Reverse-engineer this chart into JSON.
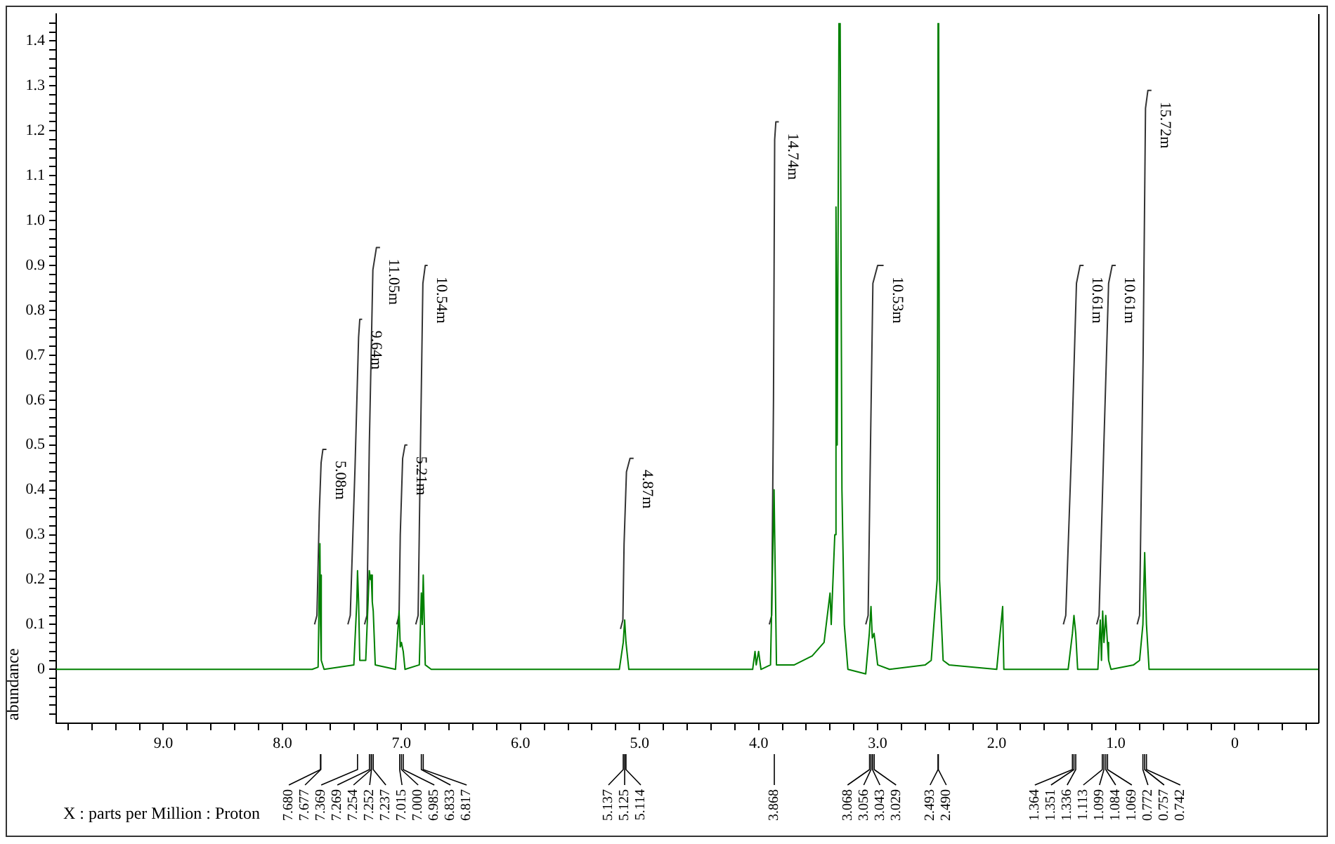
{
  "chart_data": {
    "type": "line",
    "xlabel": "X : parts per Million : Proton",
    "ylabel": "abundance",
    "grid": false,
    "legend": false,
    "xlim": [
      9.9,
      -0.7
    ],
    "ylim": [
      -0.12,
      1.46
    ],
    "xticks": [
      {
        "value": 9.8,
        "label": null
      },
      {
        "value": 9.6,
        "label": null
      },
      {
        "value": 9.4,
        "label": null
      },
      {
        "value": 9.2,
        "label": null
      },
      {
        "value": 9,
        "label": "9.0"
      },
      {
        "value": 8.8,
        "label": null
      },
      {
        "value": 8.6,
        "label": null
      },
      {
        "value": 8.4,
        "label": null
      },
      {
        "value": 8.2,
        "label": null
      },
      {
        "value": 8,
        "label": "8.0"
      },
      {
        "value": 7.8,
        "label": null
      },
      {
        "value": 7.6,
        "label": null
      },
      {
        "value": 7.4,
        "label": null
      },
      {
        "value": 7.2,
        "label": null
      },
      {
        "value": 7,
        "label": "7.0"
      },
      {
        "value": 6.8,
        "label": null
      },
      {
        "value": 6.6,
        "label": null
      },
      {
        "value": 6.4,
        "label": null
      },
      {
        "value": 6.2,
        "label": null
      },
      {
        "value": 6,
        "label": "6.0"
      },
      {
        "value": 5.8,
        "label": null
      },
      {
        "value": 5.6,
        "label": null
      },
      {
        "value": 5.4,
        "label": null
      },
      {
        "value": 5.2,
        "label": null
      },
      {
        "value": 5,
        "label": "5.0"
      },
      {
        "value": 4.8,
        "label": null
      },
      {
        "value": 4.6,
        "label": null
      },
      {
        "value": 4.4,
        "label": null
      },
      {
        "value": 4.2,
        "label": null
      },
      {
        "value": 4,
        "label": "4.0"
      },
      {
        "value": 3.8,
        "label": null
      },
      {
        "value": 3.6,
        "label": null
      },
      {
        "value": 3.4,
        "label": null
      },
      {
        "value": 3.2,
        "label": null
      },
      {
        "value": 3,
        "label": "3.0"
      },
      {
        "value": 2.8,
        "label": null
      },
      {
        "value": 2.6,
        "label": null
      },
      {
        "value": 2.4,
        "label": null
      },
      {
        "value": 2.2,
        "label": null
      },
      {
        "value": 2,
        "label": "2.0"
      },
      {
        "value": 1.8,
        "label": null
      },
      {
        "value": 1.6,
        "label": null
      },
      {
        "value": 1.4,
        "label": null
      },
      {
        "value": 1.2,
        "label": null
      },
      {
        "value": 1,
        "label": "1.0"
      },
      {
        "value": 0.8,
        "label": null
      },
      {
        "value": 0.6,
        "label": null
      },
      {
        "value": 0.4,
        "label": null
      },
      {
        "value": 0.2,
        "label": null
      },
      0,
      {
        "value": -0.2,
        "label": null
      },
      {
        "value": -0.4,
        "label": null
      },
      {
        "value": -0.6,
        "label": null
      }
    ],
    "yticks": [
      {
        "value": -0.1,
        "label": null
      },
      {
        "value": -0.08,
        "label": null
      },
      {
        "value": -0.06,
        "label": null
      },
      {
        "value": -0.04,
        "label": null
      },
      {
        "value": -0.02,
        "label": null
      },
      0,
      {
        "value": 0.02,
        "label": null
      },
      {
        "value": 0.04,
        "label": null
      },
      {
        "value": 0.06,
        "label": null
      },
      {
        "value": 0.08,
        "label": null
      },
      0.1,
      {
        "value": 0.12,
        "label": null
      },
      {
        "value": 0.14,
        "label": null
      },
      {
        "value": 0.16,
        "label": null
      },
      {
        "value": 0.18,
        "label": null
      },
      0.2,
      {
        "value": 0.22,
        "label": null
      },
      {
        "value": 0.24,
        "label": null
      },
      {
        "value": 0.26,
        "label": null
      },
      {
        "value": 0.28,
        "label": null
      },
      0.3,
      {
        "value": 0.32,
        "label": null
      },
      {
        "value": 0.34,
        "label": null
      },
      {
        "value": 0.36,
        "label": null
      },
      {
        "value": 0.38,
        "label": null
      },
      0.4,
      {
        "value": 0.42,
        "label": null
      },
      {
        "value": 0.44,
        "label": null
      },
      {
        "value": 0.46,
        "label": null
      },
      {
        "value": 0.48,
        "label": null
      },
      0.5,
      {
        "value": 0.52,
        "label": null
      },
      {
        "value": 0.54,
        "label": null
      },
      {
        "value": 0.56,
        "label": null
      },
      {
        "value": 0.58,
        "label": null
      },
      0.6,
      {
        "value": 0.62,
        "label": null
      },
      {
        "value": 0.64,
        "label": null
      },
      {
        "value": 0.66,
        "label": null
      },
      {
        "value": 0.68,
        "label": null
      },
      0.7,
      {
        "value": 0.72,
        "label": null
      },
      {
        "value": 0.74,
        "label": null
      },
      {
        "value": 0.76,
        "label": null
      },
      {
        "value": 0.78,
        "label": null
      },
      0.8,
      {
        "value": 0.82,
        "label": null
      },
      {
        "value": 0.84,
        "label": null
      },
      {
        "value": 0.86,
        "label": null
      },
      {
        "value": 0.88,
        "label": null
      },
      0.9,
      {
        "value": 0.92,
        "label": null
      },
      {
        "value": 0.94,
        "label": null
      },
      {
        "value": 0.96,
        "label": null
      },
      {
        "value": 0.98,
        "label": null
      },
      {
        "value": 1,
        "label": "1.0"
      },
      {
        "value": 1.02,
        "label": null
      },
      {
        "value": 1.04,
        "label": null
      },
      {
        "value": 1.06,
        "label": null
      },
      {
        "value": 1.08,
        "label": null
      },
      1.1,
      {
        "value": 1.12,
        "label": null
      },
      {
        "value": 1.14,
        "label": null
      },
      {
        "value": 1.16,
        "label": null
      },
      {
        "value": 1.18,
        "label": null
      },
      1.2,
      {
        "value": 1.22,
        "label": null
      },
      {
        "value": 1.24,
        "label": null
      },
      {
        "value": 1.26,
        "label": null
      },
      {
        "value": 1.28,
        "label": null
      },
      1.3,
      {
        "value": 1.32,
        "label": null
      },
      {
        "value": 1.34,
        "label": null
      },
      {
        "value": 1.36,
        "label": null
      },
      {
        "value": 1.38,
        "label": null
      },
      1.4,
      {
        "value": 1.42,
        "label": null
      },
      {
        "value": 1.44,
        "label": null
      }
    ],
    "series": [
      {
        "color": "#008000",
        "x": [
          9.9,
          7.75,
          7.7,
          7.685,
          7.68,
          7.677,
          7.67,
          7.65,
          7.4,
          7.375,
          7.369,
          7.36,
          7.35,
          7.3,
          7.27,
          7.26,
          7.254,
          7.245,
          7.237,
          7.22,
          7.05,
          7.02,
          7.01,
          7,
          6.985,
          6.97,
          6.85,
          6.833,
          6.825,
          6.817,
          6.8,
          6.75,
          5.17,
          5.137,
          5.125,
          5.114,
          5.09,
          4.05,
          4.03,
          4.02,
          4,
          3.98,
          3.9,
          3.87,
          3.85,
          3.7,
          3.55,
          3.45,
          3.4,
          3.39,
          3.36,
          3.35,
          3.34,
          3.325,
          3.32,
          3.315,
          3.3,
          3.28,
          3.25,
          3.1,
          3.07,
          3.056,
          3.045,
          3.03,
          3,
          2.9,
          2.6,
          2.55,
          2.5,
          2.4925,
          2.49,
          2.4875,
          2.48,
          2.45,
          2.4,
          2,
          1.95,
          1.94,
          1.4,
          1.364,
          1.351,
          1.336,
          1.32,
          1.15,
          1.13,
          1.12,
          1.11,
          1.099,
          1.084,
          1.07,
          1.06,
          1.04,
          0.85,
          0.8,
          0.772,
          0.757,
          0.742,
          0.72,
          -0.7
        ],
        "values": [
          0,
          0,
          0.005,
          0.28,
          0.1,
          0.21,
          0.02,
          0,
          0.01,
          0.15,
          0.22,
          0.15,
          0.02,
          0.02,
          0.22,
          0.2,
          0.21,
          0.15,
          0.13,
          0.01,
          0,
          0.13,
          0.05,
          0.06,
          0.04,
          0,
          0.01,
          0.17,
          0.1,
          0.21,
          0.01,
          0,
          0,
          0.06,
          0.11,
          0.06,
          0,
          0,
          0.04,
          0.01,
          0.04,
          0,
          0.01,
          0.4,
          0.01,
          0.01,
          0.03,
          0.06,
          0.17,
          0.1,
          0.3,
          1.03,
          0.5,
          1.44,
          null,
          1.44,
          0.4,
          0.1,
          0,
          -0.01,
          0.08,
          0.14,
          0.07,
          0.08,
          0.01,
          0,
          0.01,
          0.02,
          0.2,
          1.44,
          null,
          1.44,
          0.2,
          0.02,
          0.01,
          0,
          0.14,
          0,
          0,
          0.08,
          0.12,
          0.08,
          0,
          0,
          0.11,
          0.02,
          0.13,
          0.06,
          0.12,
          0.06,
          0.02,
          0,
          0.01,
          0.02,
          0.1,
          0.26,
          0.1,
          0,
          0
        ]
      },
      {
        "color": "#333333",
        "x": [
          7.73,
          7.71,
          7.69,
          7.675,
          7.66,
          7.63
        ],
        "values": [
          0.1,
          0.12,
          0.35,
          0.46,
          0.49,
          0.49
        ]
      },
      {
        "color": "#333333",
        "x": [
          7.45,
          7.43,
          7.39,
          7.36,
          7.35,
          7.33
        ],
        "values": [
          0.1,
          0.12,
          0.45,
          0.74,
          0.78,
          0.78
        ]
      },
      {
        "color": "#333333",
        "x": [
          7.31,
          7.29,
          7.27,
          7.24,
          7.21,
          7.18
        ],
        "values": [
          0.1,
          0.12,
          0.5,
          0.89,
          0.94,
          0.94
        ]
      },
      {
        "color": "#333333",
        "x": [
          7.04,
          7.02,
          7.01,
          6.99,
          6.97,
          6.95
        ],
        "values": [
          0.1,
          0.12,
          0.3,
          0.47,
          0.5,
          0.5
        ]
      },
      {
        "color": "#333333",
        "x": [
          6.88,
          6.86,
          6.84,
          6.82,
          6.8,
          6.78
        ],
        "values": [
          0.1,
          0.12,
          0.5,
          0.86,
          0.9,
          0.9
        ]
      },
      {
        "color": "#333333",
        "x": [
          5.16,
          5.14,
          5.13,
          5.11,
          5.08,
          5.05
        ],
        "values": [
          0.09,
          0.11,
          0.28,
          0.44,
          0.47,
          0.47
        ]
      },
      {
        "color": "#333333",
        "x": [
          3.91,
          3.89,
          3.875,
          3.865,
          3.855,
          3.83
        ],
        "values": [
          0.1,
          0.12,
          0.6,
          1.18,
          1.22,
          1.22
        ]
      },
      {
        "color": "#333333",
        "x": [
          3.1,
          3.08,
          3.06,
          3.04,
          3,
          2.95
        ],
        "values": [
          0.1,
          0.12,
          0.5,
          0.86,
          0.9,
          0.9
        ]
      },
      {
        "color": "#333333",
        "x": [
          1.44,
          1.42,
          1.37,
          1.33,
          1.3,
          1.27
        ],
        "values": [
          0.1,
          0.12,
          0.5,
          0.86,
          0.9,
          0.9
        ]
      },
      {
        "color": "#333333",
        "x": [
          1.16,
          1.14,
          1.1,
          1.06,
          1.03,
          1
        ],
        "values": [
          0.1,
          0.12,
          0.5,
          0.86,
          0.9,
          0.9
        ]
      },
      {
        "color": "#333333",
        "x": [
          0.82,
          0.8,
          0.77,
          0.75,
          0.73,
          0.7
        ],
        "values": [
          0.1,
          0.12,
          0.7,
          1.25,
          1.29,
          1.29
        ]
      }
    ],
    "annotations": [
      {
        "text": "5.08m",
        "x": 7.63,
        "y": 0.49
      },
      {
        "text": "9.64m",
        "x": 7.33,
        "y": 0.78
      },
      {
        "text": "11.05m",
        "x": 7.18,
        "y": 0.94
      },
      {
        "text": "5.21m",
        "x": 6.95,
        "y": 0.5
      },
      {
        "text": "10.54m",
        "x": 6.78,
        "y": 0.9
      },
      {
        "text": "4.87m",
        "x": 5.05,
        "y": 0.47
      },
      {
        "text": "14.74m",
        "x": 3.83,
        "y": 1.22
      },
      {
        "text": "10.53m",
        "x": 2.95,
        "y": 0.9
      },
      {
        "text": "10.61m",
        "x": 1.27,
        "y": 0.9
      },
      {
        "text": "10.61m",
        "x": 1,
        "y": 0.9
      },
      {
        "text": "15.72m",
        "x": 0.7,
        "y": 1.29
      },
      {
        "text": "7.680",
        "x": 7.68
      },
      {
        "text": "7.677",
        "x": 7.677
      },
      {
        "text": "7.369",
        "x": 7.369
      },
      {
        "text": "7.269",
        "x": 7.269
      },
      {
        "text": "7.254",
        "x": 7.254
      },
      {
        "text": "7.252",
        "x": 7.252
      },
      {
        "text": "7.237",
        "x": 7.237
      },
      {
        "text": "7.015",
        "x": 7.015
      },
      {
        "text": "7.000",
        "x": 7
      },
      {
        "text": "6.985",
        "x": 6.985
      },
      {
        "text": "6.833",
        "x": 6.833
      },
      {
        "text": "6.817",
        "x": 6.817
      },
      {
        "text": "5.137",
        "x": 5.137
      },
      {
        "text": "5.125",
        "x": 5.125
      },
      {
        "text": "5.114",
        "x": 5.114
      },
      {
        "text": "3.868",
        "x": 3.868
      },
      {
        "text": "3.068",
        "x": 3.068
      },
      {
        "text": "3.056",
        "x": 3.056
      },
      {
        "text": "3.043",
        "x": 3.043
      },
      {
        "text": "3.029",
        "x": 3.029
      },
      {
        "text": "2.493",
        "x": 2.493
      },
      {
        "text": "2.490",
        "x": 2.49
      },
      {
        "text": "1.364",
        "x": 1.364
      },
      {
        "text": "1.351",
        "x": 1.351
      },
      {
        "text": "1.336",
        "x": 1.336
      },
      {
        "text": "1.113",
        "x": 1.113
      },
      {
        "text": "1.099",
        "x": 1.099
      },
      {
        "text": "1.084",
        "x": 1.084
      },
      {
        "text": "1.069",
        "x": 1.069
      },
      {
        "text": "0.772",
        "x": 0.772
      },
      {
        "text": "0.757",
        "x": 0.757
      },
      {
        "text": "0.742",
        "x": 0.742
      }
    ]
  }
}
